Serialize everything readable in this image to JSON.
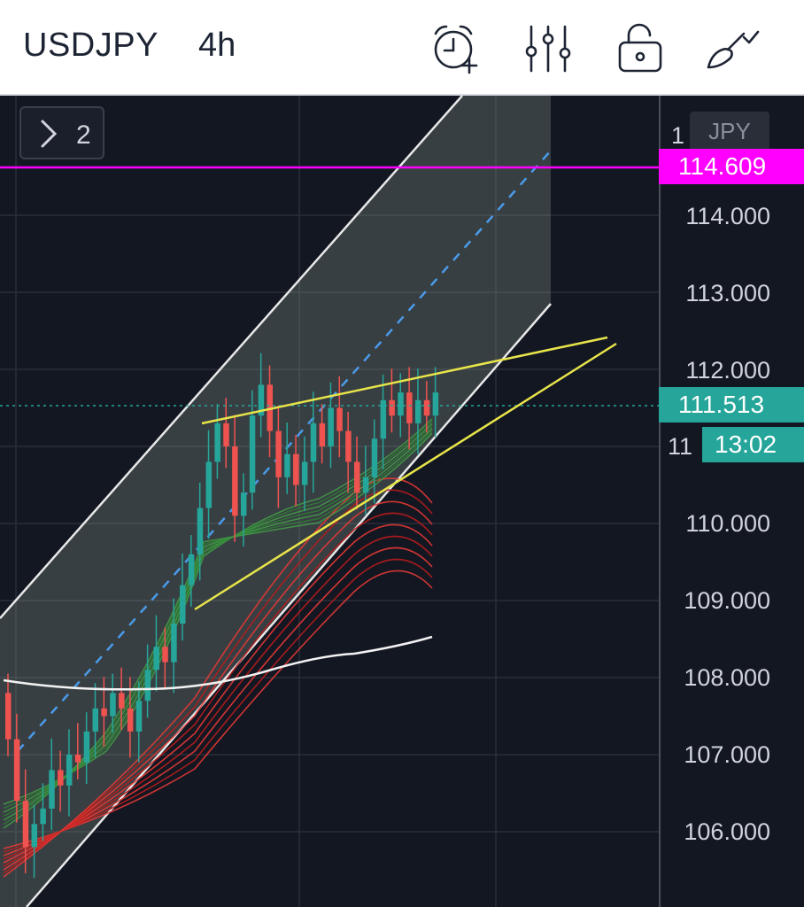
{
  "header": {
    "symbol": "USDJPY",
    "interval": "4h",
    "icons": [
      "alarm-add-icon",
      "indicator-settings-icon",
      "unlock-icon",
      "brush-icon"
    ]
  },
  "chart": {
    "collapsed_count": "2",
    "currency": "JPY",
    "price_axis": [
      "114.000",
      "113.000",
      "112.000",
      "110.000",
      "109.000",
      "108.000",
      "107.000",
      "106.000"
    ],
    "partial_labels": [
      "1",
      "11"
    ],
    "alert_line_label": "114.609",
    "alert_line_color": "#ff00ff",
    "last_price_label": "111.513",
    "countdown_label": "13:02",
    "price_badge_color": "#26a69a",
    "bull_color": "#26a69a",
    "bear_color": "#ef5350"
  }
}
